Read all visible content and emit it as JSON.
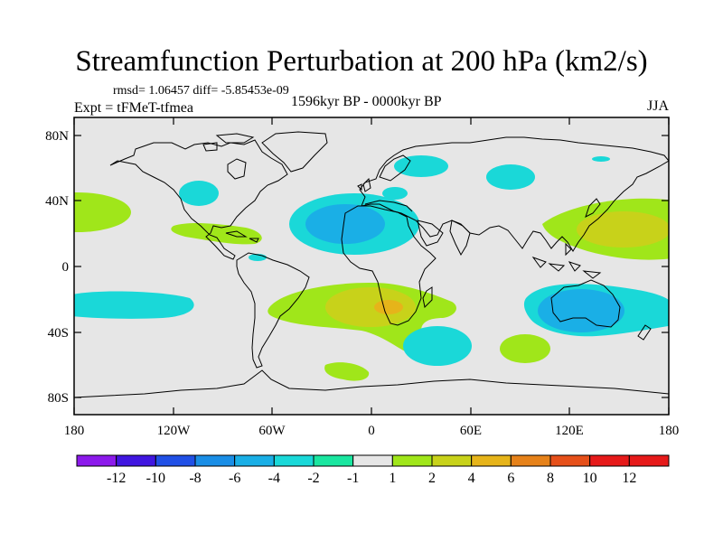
{
  "map": {
    "title": "Streamfunction Perturbation at 200 hPa (km2/s)",
    "stats_text": "rmsd= 1.06457 diff= -5.85453e-09",
    "experiment_text": "Expt = tFMeT-tfmea",
    "period_text": "1596kyr BP - 0000kyr BP",
    "season_text": "JJA",
    "projection": "cylindrical equidistant",
    "background_color": "#e6e6e6",
    "lat_ticks": [
      "80N",
      "40N",
      "0",
      "40S",
      "80S"
    ],
    "lon_ticks": [
      "180",
      "120W",
      "60W",
      "0",
      "60E",
      "120E",
      "180"
    ],
    "features": [
      {
        "name": "North Pacific positive",
        "level": 2
      },
      {
        "name": "North Pacific (Baja) negative",
        "level": -2
      },
      {
        "name": "Central America positive",
        "level": 2
      },
      {
        "name": "North Atlantic / Sahara negative",
        "level": -2
      },
      {
        "name": "North Atlantic / Sahara negative core",
        "level": -4
      },
      {
        "name": "Greenland Sea negative",
        "level": -2
      },
      {
        "name": "Siberia negative",
        "level": -2
      },
      {
        "name": "Mediterranean negative",
        "level": -2
      },
      {
        "name": "Western Pacific positive",
        "level": 2
      },
      {
        "name": "Western Pacific positive core",
        "level": 4
      },
      {
        "name": "South Atlantic / Southern Africa positive",
        "level": 2
      },
      {
        "name": "South Atlantic positive core",
        "level": 4
      },
      {
        "name": "South Atlantic positive inner core",
        "level": 6
      },
      {
        "name": "Australia negative",
        "level": -2
      },
      {
        "name": "Australia negative core",
        "level": -4
      },
      {
        "name": "South Indian Ocean negative",
        "level": -2
      },
      {
        "name": "South Pacific negative",
        "level": -2
      },
      {
        "name": "Antarctic coast positive",
        "level": 2
      }
    ]
  },
  "colorbar": {
    "labels": [
      "-12",
      "-10",
      "-8",
      "-6",
      "-4",
      "-2",
      "-1",
      "1",
      "2",
      "4",
      "6",
      "8",
      "10",
      "12"
    ],
    "colors": [
      "#8c1aeb",
      "#4016e0",
      "#2050e6",
      "#1a8ee6",
      "#1aafe6",
      "#1ad8d8",
      "#1ae6a0",
      "#e6e6e6",
      "#a0e61a",
      "#c8d21a",
      "#e6b41a",
      "#e6821a",
      "#e6501a",
      "#e61a1a"
    ]
  }
}
